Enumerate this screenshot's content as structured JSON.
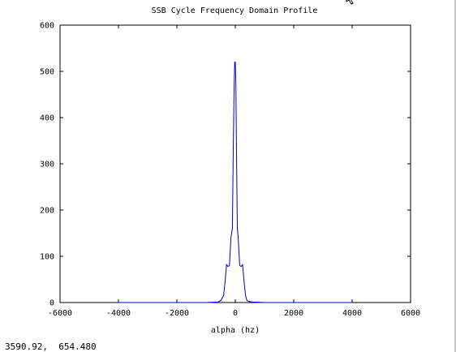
{
  "window": {
    "coordinate_readout": "3590.92,  654.480",
    "cursor_icon": "mouse-pointer-icon"
  },
  "chart_data": {
    "type": "line",
    "title": "SSB Cycle Frequency Domain Profile",
    "xlabel": "alpha (hz)",
    "ylabel": "",
    "xlim": [
      -6000,
      6000
    ],
    "ylim": [
      0,
      600
    ],
    "xticks": [
      -6000,
      -4000,
      -2000,
      0,
      2000,
      4000,
      6000
    ],
    "yticks": [
      0,
      100,
      200,
      300,
      400,
      500,
      600
    ],
    "grid": false,
    "line_color": "#0000c0",
    "series": [
      {
        "x": [
          -4000,
          -1000,
          -600,
          -500,
          -400,
          -350,
          -300,
          -250,
          -200,
          -150,
          -100,
          -70,
          -40,
          -20,
          0,
          20,
          40,
          70,
          100,
          150,
          200,
          250,
          300,
          350,
          400,
          500,
          600,
          1000,
          4000
        ],
        "values": [
          0,
          0,
          1,
          4,
          15,
          45,
          82,
          78,
          80,
          140,
          160,
          330,
          470,
          520,
          520,
          470,
          330,
          160,
          140,
          80,
          78,
          82,
          45,
          15,
          4,
          2,
          1,
          0,
          0
        ]
      }
    ]
  }
}
